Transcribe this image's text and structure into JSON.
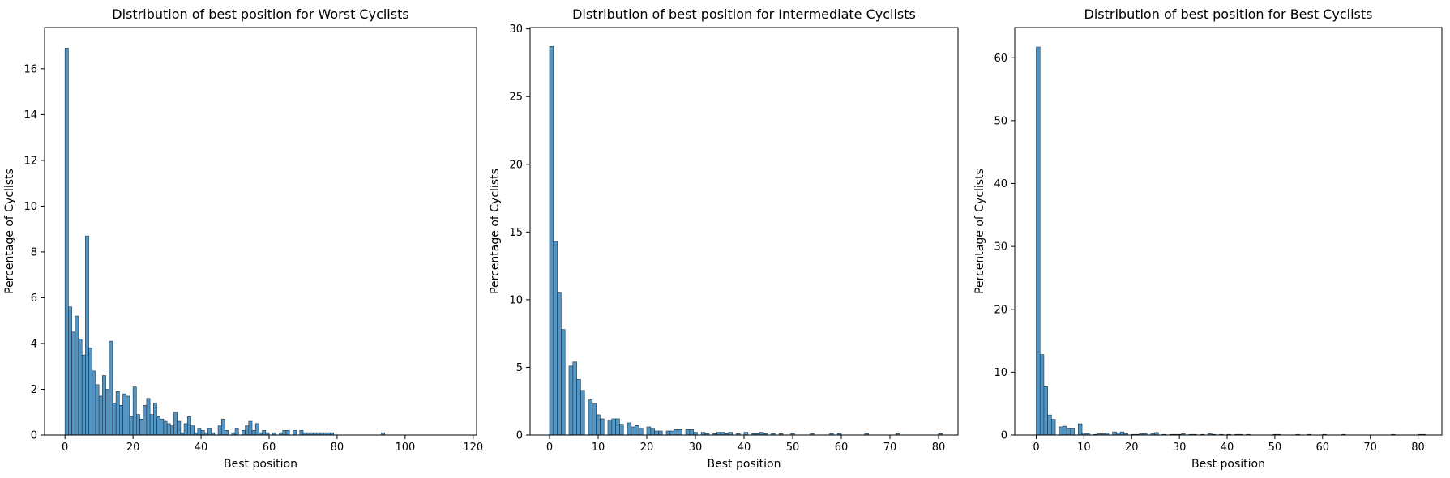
{
  "chart_data": [
    {
      "type": "bar",
      "title": "Distribution of best position for Worst Cyclists",
      "xlabel": "Best position",
      "ylabel": "Percentage of Cyclists",
      "xlim": [
        -6,
        121
      ],
      "ylim": [
        0,
        17.8
      ],
      "xticks": [
        0,
        20,
        40,
        60,
        80,
        100,
        120
      ],
      "yticks": [
        0,
        2,
        4,
        6,
        8,
        10,
        12,
        14,
        16
      ],
      "bin_width": 1,
      "bar_color": "#4a8fc0",
      "edge_color": "#1a3347",
      "grid": false,
      "x": [
        0,
        1,
        2,
        3,
        4,
        5,
        6,
        7,
        8,
        9,
        10,
        11,
        12,
        13,
        14,
        15,
        16,
        17,
        18,
        19,
        20,
        21,
        22,
        23,
        24,
        25,
        26,
        27,
        28,
        29,
        30,
        31,
        32,
        33,
        34,
        35,
        36,
        37,
        38,
        39,
        40,
        41,
        42,
        43,
        44,
        45,
        46,
        47,
        48,
        49,
        50,
        51,
        52,
        53,
        54,
        55,
        56,
        57,
        58,
        59,
        60,
        61,
        62,
        63,
        64,
        65,
        66,
        67,
        68,
        69,
        70,
        71,
        72,
        73,
        74,
        75,
        76,
        77,
        78,
        79,
        80,
        81,
        82,
        83,
        84,
        85,
        86,
        87,
        88,
        89,
        90,
        91,
        92,
        93,
        94,
        95,
        96,
        97,
        98,
        99,
        100,
        101,
        102,
        103,
        104,
        105,
        106,
        107,
        108,
        109,
        110,
        111,
        112,
        113,
        114,
        115,
        116
      ],
      "values": [
        16.9,
        5.6,
        4.5,
        5.2,
        4.2,
        3.5,
        8.7,
        3.8,
        2.8,
        2.2,
        1.7,
        2.6,
        2.0,
        4.1,
        1.4,
        1.9,
        1.3,
        1.8,
        1.7,
        0.8,
        2.1,
        0.9,
        0.7,
        1.3,
        1.6,
        0.9,
        1.4,
        0.8,
        0.7,
        0.6,
        0.5,
        0.4,
        1.0,
        0.6,
        0.1,
        0.5,
        0.8,
        0.4,
        0.1,
        0.3,
        0.2,
        0.1,
        0.3,
        0.1,
        0.0,
        0.4,
        0.7,
        0.2,
        0.0,
        0.1,
        0.3,
        0.0,
        0.2,
        0.4,
        0.6,
        0.2,
        0.5,
        0.1,
        0.2,
        0.1,
        0.0,
        0.1,
        0.0,
        0.1,
        0.2,
        0.2,
        0.0,
        0.2,
        0.0,
        0.2,
        0.1,
        0.1,
        0.1,
        0.1,
        0.1,
        0.1,
        0.1,
        0.1,
        0.1,
        0.0,
        0.0,
        0.0,
        0.0,
        0.0,
        0.0,
        0.0,
        0.0,
        0.0,
        0.0,
        0.0,
        0.0,
        0.0,
        0.0,
        0.1,
        0.0,
        0.0,
        0.0,
        0.0,
        0.0,
        0.0,
        0.0,
        0.0,
        0.0,
        0.0,
        0.0,
        0.0,
        0.0,
        0.0,
        0.0,
        0.0,
        0.0,
        0.0,
        0.0,
        0.0,
        0.0,
        0.0,
        0.0
      ]
    },
    {
      "type": "bar",
      "title": "Distribution of best position for Intermediate Cyclists",
      "xlabel": "Best position",
      "ylabel": "Percentage of Cyclists",
      "xlim": [
        -4,
        84
      ],
      "ylim": [
        0,
        30.1
      ],
      "xticks": [
        0,
        10,
        20,
        30,
        40,
        50,
        60,
        70,
        80
      ],
      "yticks": [
        0,
        5,
        10,
        15,
        20,
        25,
        30
      ],
      "bin_width": 0.8,
      "bar_color": "#4a8fc0",
      "edge_color": "#1a3347",
      "grid": false,
      "x": [
        0,
        0.8,
        1.6,
        2.4,
        3.2,
        4.0,
        4.8,
        5.6,
        6.4,
        7.2,
        8.0,
        8.8,
        9.6,
        10.4,
        11.2,
        12.0,
        12.8,
        13.6,
        14.4,
        15.2,
        16.0,
        16.8,
        17.6,
        18.4,
        19.2,
        20.0,
        20.8,
        21.6,
        22.4,
        23.2,
        24.0,
        24.8,
        25.6,
        26.4,
        27.2,
        28.0,
        28.8,
        29.6,
        30.4,
        31.2,
        32.0,
        32.8,
        33.6,
        34.4,
        35.2,
        36.0,
        36.8,
        37.6,
        38.4,
        39.2,
        40.0,
        40.8,
        41.6,
        42.4,
        43.2,
        44.0,
        44.8,
        45.6,
        46.4,
        47.2,
        48.0,
        48.8,
        49.6,
        50.4,
        51.2,
        52.0,
        52.8,
        53.6,
        54.4,
        55.2,
        56.0,
        56.8,
        57.6,
        58.4,
        59.2,
        60.0,
        60.8,
        61.6,
        62.4,
        63.2,
        64.0,
        64.8,
        65.6,
        66.4,
        67.2,
        68.0,
        68.8,
        69.6,
        70.4,
        71.2,
        72.0,
        72.8,
        73.6,
        74.4,
        75.2,
        76.0,
        76.8,
        77.6,
        78.4,
        79.2,
        80.0
      ],
      "values": [
        28.7,
        14.3,
        10.5,
        7.8,
        0.0,
        5.1,
        5.4,
        4.1,
        3.3,
        0.0,
        2.6,
        2.3,
        1.5,
        1.2,
        0.0,
        1.1,
        1.2,
        1.2,
        0.8,
        0.0,
        0.9,
        0.6,
        0.7,
        0.5,
        0.0,
        0.6,
        0.5,
        0.3,
        0.3,
        0.0,
        0.3,
        0.3,
        0.4,
        0.4,
        0.0,
        0.4,
        0.4,
        0.2,
        0.0,
        0.2,
        0.1,
        0.0,
        0.1,
        0.2,
        0.2,
        0.1,
        0.2,
        0.0,
        0.1,
        0.0,
        0.2,
        0.0,
        0.1,
        0.1,
        0.2,
        0.1,
        0.0,
        0.1,
        0.0,
        0.1,
        0.0,
        0.0,
        0.1,
        0.0,
        0.0,
        0.0,
        0.0,
        0.1,
        0.0,
        0.0,
        0.0,
        0.0,
        0.1,
        0.0,
        0.1,
        0.0,
        0.0,
        0.0,
        0.0,
        0.0,
        0.0,
        0.1,
        0.0,
        0.0,
        0.0,
        0.0,
        0.0,
        0.0,
        0.0,
        0.1,
        0.0,
        0.0,
        0.0,
        0.0,
        0.0,
        0.0,
        0.0,
        0.0,
        0.0,
        0.0,
        0.1
      ]
    },
    {
      "type": "bar",
      "title": "Distribution of best position for Best Cyclists",
      "xlabel": "Best position",
      "ylabel": "Percentage of Cyclists",
      "xlim": [
        -4.5,
        85
      ],
      "ylim": [
        0,
        64.8
      ],
      "xticks": [
        0,
        10,
        20,
        30,
        40,
        50,
        60,
        70,
        80
      ],
      "yticks": [
        0,
        10,
        20,
        30,
        40,
        50,
        60
      ],
      "bin_width": 0.8,
      "bar_color": "#4a8fc0",
      "edge_color": "#1a3347",
      "grid": false,
      "x": [
        0,
        0.8,
        1.6,
        2.4,
        3.2,
        4.0,
        4.8,
        5.6,
        6.4,
        7.2,
        8.0,
        8.8,
        9.6,
        10.4,
        11.2,
        12.0,
        12.8,
        13.6,
        14.4,
        15.2,
        16.0,
        16.8,
        17.6,
        18.4,
        19.2,
        20.0,
        20.8,
        21.6,
        22.4,
        23.2,
        24.0,
        24.8,
        25.6,
        26.4,
        27.2,
        28.0,
        28.8,
        29.6,
        30.4,
        31.2,
        32.0,
        32.8,
        33.6,
        34.4,
        35.2,
        36.0,
        36.8,
        37.6,
        38.4,
        39.2,
        40.0,
        40.8,
        41.6,
        42.4,
        43.2,
        44.0,
        44.8,
        45.6,
        46.4,
        47.2,
        48.0,
        48.8,
        49.6,
        50.4,
        51.2,
        52.0,
        52.8,
        53.6,
        54.4,
        55.2,
        56.0,
        56.8,
        57.6,
        58.4,
        59.2,
        60.0,
        60.8,
        61.6,
        62.4,
        63.2,
        64.0,
        64.8,
        65.6,
        66.4,
        67.2,
        68.0,
        68.8,
        69.6,
        70.4,
        71.2,
        72.0,
        72.8,
        73.6,
        74.4,
        75.2,
        76.0,
        76.8,
        77.6,
        78.4,
        79.2,
        80.0,
        80.8
      ],
      "values": [
        61.7,
        12.8,
        7.7,
        3.2,
        2.5,
        0.0,
        1.3,
        1.4,
        1.1,
        1.1,
        0.0,
        1.8,
        0.3,
        0.2,
        0.0,
        0.1,
        0.2,
        0.2,
        0.3,
        0.0,
        0.5,
        0.3,
        0.5,
        0.2,
        0.0,
        0.1,
        0.1,
        0.2,
        0.2,
        0.0,
        0.2,
        0.4,
        0.0,
        0.1,
        0.0,
        0.1,
        0.1,
        0.1,
        0.2,
        0.0,
        0.1,
        0.1,
        0.0,
        0.1,
        0.0,
        0.2,
        0.1,
        0.0,
        0.1,
        0.0,
        0.1,
        0.0,
        0.1,
        0.1,
        0.0,
        0.1,
        0.0,
        0.0,
        0.0,
        0.0,
        0.0,
        0.0,
        0.1,
        0.1,
        0.0,
        0.0,
        0.0,
        0.0,
        0.1,
        0.0,
        0.0,
        0.1,
        0.0,
        0.0,
        0.0,
        0.1,
        0.0,
        0.0,
        0.0,
        0.0,
        0.1,
        0.0,
        0.0,
        0.0,
        0.0,
        0.0,
        0.0,
        0.0,
        0.0,
        0.0,
        0.0,
        0.0,
        0.0,
        0.1,
        0.0,
        0.0,
        0.0,
        0.0,
        0.0,
        0.0,
        0.1,
        0.1
      ]
    }
  ]
}
